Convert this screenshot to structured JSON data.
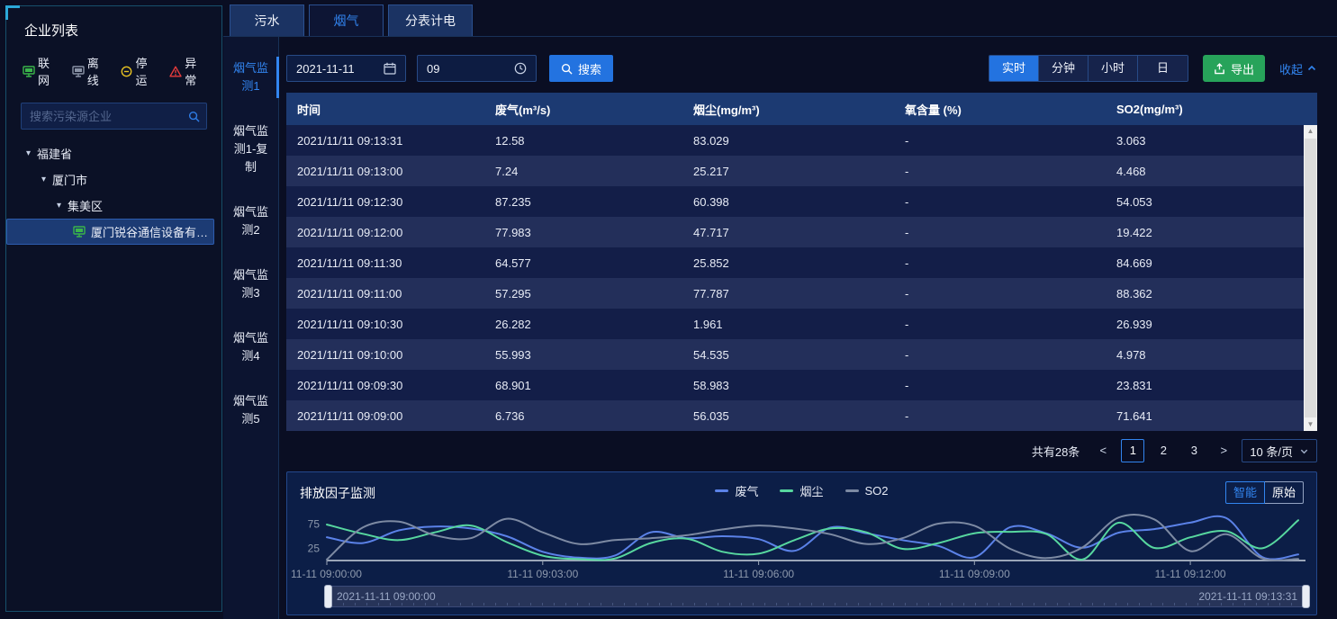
{
  "sidebar": {
    "title": "企业列表",
    "status_legend": [
      {
        "label": "联网",
        "icon": "monitor-icon",
        "color": "#3ab54a"
      },
      {
        "label": "离线",
        "icon": "monitor-icon",
        "color": "#8a93a6"
      },
      {
        "label": "停运",
        "icon": "pause-circle-icon",
        "color": "#e6c122"
      },
      {
        "label": "异常",
        "icon": "warning-triangle-icon",
        "color": "#e63c3c"
      }
    ],
    "search_placeholder": "搜索污染源企业",
    "tree": [
      {
        "label": "福建省",
        "depth": 0,
        "expanded": true,
        "selected": false
      },
      {
        "label": "厦门市",
        "depth": 1,
        "expanded": true,
        "selected": false
      },
      {
        "label": "集美区",
        "depth": 2,
        "expanded": true,
        "selected": false
      },
      {
        "label": "厦门锐谷通信设备有限...",
        "depth": 3,
        "icon": "monitor-icon",
        "icon_color": "#3ab54a",
        "selected": true
      }
    ]
  },
  "tabs": {
    "active": 1,
    "items": [
      "污水",
      "烟气",
      "分表计电"
    ]
  },
  "subtabs": {
    "active": 0,
    "items": [
      "烟气监测1",
      "烟气监测1-复制",
      "烟气监测2",
      "烟气监测3",
      "烟气监测4",
      "烟气监测5"
    ]
  },
  "toolbar": {
    "date_value": "2021-11-11",
    "time_value": "09",
    "search_label": "搜索",
    "ranges": {
      "active": 0,
      "items": [
        "实时",
        "分钟",
        "小时",
        "日"
      ]
    },
    "export_label": "导出",
    "collapse_label": "收起"
  },
  "table": {
    "columns": [
      "时间",
      "废气(m³/s)",
      "烟尘(mg/m³)",
      "氧含量 (%)",
      "SO2(mg/m³)"
    ],
    "rows": [
      [
        "2021/11/11 09:13:31",
        "12.58",
        "83.029",
        "-",
        "3.063"
      ],
      [
        "2021/11/11 09:13:00",
        "7.24",
        "25.217",
        "-",
        "4.468"
      ],
      [
        "2021/11/11 09:12:30",
        "87.235",
        "60.398",
        "-",
        "54.053"
      ],
      [
        "2021/11/11 09:12:00",
        "77.983",
        "47.717",
        "-",
        "19.422"
      ],
      [
        "2021/11/11 09:11:30",
        "64.577",
        "25.852",
        "-",
        "84.669"
      ],
      [
        "2021/11/11 09:11:00",
        "57.295",
        "77.787",
        "-",
        "88.362"
      ],
      [
        "2021/11/11 09:10:30",
        "26.282",
        "1.961",
        "-",
        "26.939"
      ],
      [
        "2021/11/11 09:10:00",
        "55.993",
        "54.535",
        "-",
        "4.978"
      ],
      [
        "2021/11/11 09:09:30",
        "68.901",
        "58.983",
        "-",
        "23.831"
      ],
      [
        "2021/11/11 09:09:00",
        "6.736",
        "56.035",
        "-",
        "71.641"
      ]
    ]
  },
  "pagination": {
    "total_text": "共有28条",
    "prev": "<",
    "next": ">",
    "pages": [
      "1",
      "2",
      "3"
    ],
    "current": "1",
    "page_size_text": "10 条/页"
  },
  "chart_panel": {
    "mode_buttons": {
      "active": 0,
      "items": [
        "智能",
        "原始"
      ]
    },
    "slider": {
      "start_label": "2021-11-11 09:00:00",
      "end_label": "2021-11-11 09:13:31"
    }
  },
  "chart_data": {
    "type": "line",
    "title": "排放因子监测",
    "x": [
      "09:00:00",
      "09:00:30",
      "09:01:00",
      "09:01:30",
      "09:02:00",
      "09:02:30",
      "09:03:00",
      "09:03:30",
      "09:04:00",
      "09:04:30",
      "09:05:00",
      "09:05:30",
      "09:06:00",
      "09:06:30",
      "09:07:00",
      "09:07:30",
      "09:08:00",
      "09:08:30",
      "09:09:00",
      "09:09:30",
      "09:10:00",
      "09:10:30",
      "09:11:00",
      "09:11:30",
      "09:12:00",
      "09:12:30",
      "09:13:00",
      "09:13:31"
    ],
    "series": [
      {
        "name": "废气",
        "color": "#5b82e8",
        "values": [
          48,
          36,
          62,
          70,
          66,
          50,
          18,
          6,
          10,
          58,
          46,
          50,
          44,
          20,
          68,
          56,
          42,
          30,
          6.736,
          68.901,
          55.993,
          26.282,
          57.295,
          64.577,
          77.983,
          87.235,
          7.24,
          12.58
        ]
      },
      {
        "name": "烟尘",
        "color": "#57d79f",
        "values": [
          74,
          55,
          42,
          58,
          72,
          38,
          10,
          3,
          4,
          36,
          45,
          18,
          14,
          42,
          66,
          58,
          24,
          36,
          56.035,
          58.983,
          54.535,
          1.961,
          77.787,
          25.852,
          47.717,
          60.398,
          25.217,
          83.029
        ]
      },
      {
        "name": "SO2",
        "color": "#7d8aa3",
        "values": [
          2,
          68,
          80,
          52,
          46,
          86,
          58,
          34,
          42,
          46,
          52,
          64,
          72,
          66,
          54,
          34,
          46,
          76,
          71.641,
          23.831,
          4.978,
          26.939,
          88.362,
          84.669,
          19.422,
          54.053,
          4.468,
          3.063
        ]
      }
    ],
    "ylim": [
      0,
      100
    ],
    "yticks": [
      25,
      75
    ],
    "xtick_every": 6,
    "xtick_labels": [
      "11-11 09:00:00",
      "11-11 09:03:00",
      "11-11 09:06:00",
      "11-11 09:09:00",
      "11-11 09:12:00"
    ],
    "legend_position": "top-center",
    "grid": false
  }
}
